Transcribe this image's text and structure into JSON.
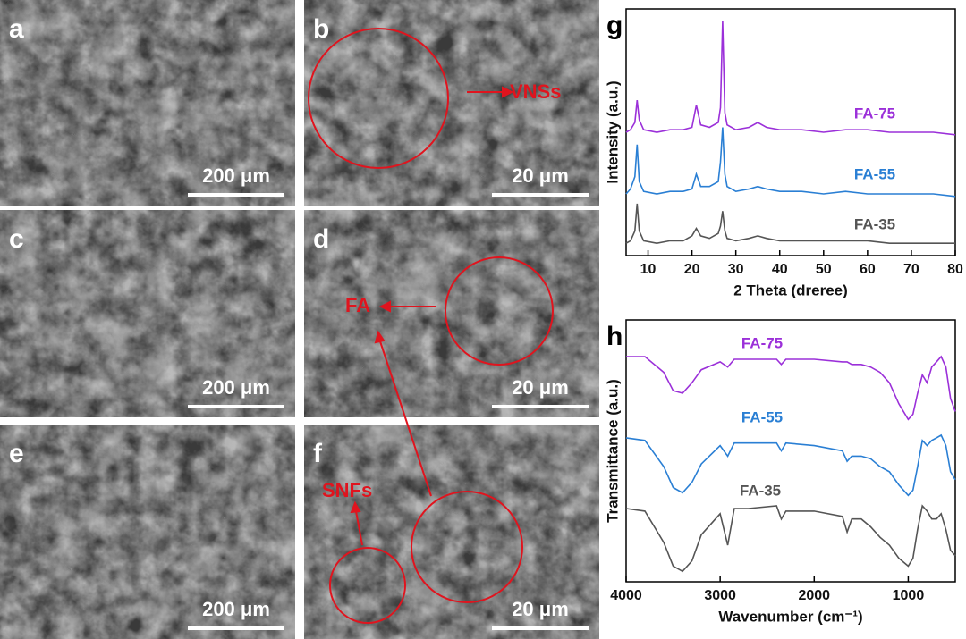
{
  "panels": [
    {
      "label": "a",
      "scale_bar": "200 μm"
    },
    {
      "label": "b",
      "scale_bar": "20 μm"
    },
    {
      "label": "c",
      "scale_bar": "200 μm"
    },
    {
      "label": "d",
      "scale_bar": "20 μm"
    },
    {
      "label": "e",
      "scale_bar": "200 μm"
    },
    {
      "label": "f",
      "scale_bar": "20 μm"
    }
  ],
  "annotations": {
    "vnss": "VNSs",
    "fa": "FA",
    "snfs": "SNFs"
  },
  "chart_data": [
    {
      "type": "line",
      "panel_label": "g",
      "x_label": "2 Theta (dreree)",
      "y_label": "Intensity (a.u.)",
      "x": [
        5,
        6,
        7,
        7.5,
        8,
        9,
        12,
        15,
        18,
        20,
        21,
        22,
        24,
        26,
        26.5,
        27,
        27.5,
        28,
        30,
        33,
        35,
        37,
        40,
        45,
        50,
        55,
        60,
        65,
        70,
        75,
        80
      ],
      "xlim": [
        5,
        80
      ],
      "xticks": [
        10,
        20,
        30,
        40,
        50,
        60,
        70,
        80
      ],
      "ylim": [
        0,
        100
      ],
      "series": [
        {
          "name": "FA-75",
          "color": "#9b30d9",
          "values": [
            50,
            51,
            54,
            63,
            55,
            51,
            50,
            51,
            51,
            52,
            61,
            53,
            52,
            54,
            60,
            95,
            58,
            53,
            51,
            52,
            54,
            52,
            51,
            51,
            50,
            51,
            51,
            50,
            50,
            50,
            49
          ]
        },
        {
          "name": "FA-55",
          "color": "#2a7fd4",
          "values": [
            25,
            27,
            32,
            45,
            30,
            26,
            25,
            26,
            26,
            27,
            33,
            28,
            28,
            30,
            38,
            52,
            33,
            28,
            26,
            27,
            28,
            27,
            26,
            26,
            25,
            26,
            25,
            25,
            25,
            25,
            24
          ]
        },
        {
          "name": "FA-35",
          "color": "#555555",
          "values": [
            5,
            6,
            10,
            21,
            10,
            6,
            5,
            6,
            6,
            8,
            11,
            8,
            7,
            9,
            12,
            18,
            10,
            7,
            6,
            7,
            8,
            7,
            6,
            6,
            6,
            6,
            6,
            5,
            5,
            5,
            5
          ]
        }
      ]
    },
    {
      "type": "line",
      "panel_label": "h",
      "x_label": "Wavenumber (cm⁻¹)",
      "y_label": "Transmittance (a.u.)",
      "x": [
        4000,
        3800,
        3600,
        3500,
        3400,
        3300,
        3200,
        3000,
        2920,
        2850,
        2700,
        2400,
        2350,
        2300,
        2000,
        1700,
        1650,
        1600,
        1500,
        1400,
        1300,
        1200,
        1100,
        1000,
        950,
        900,
        850,
        800,
        750,
        700,
        650,
        600,
        550,
        500
      ],
      "xlim": [
        4000,
        500
      ],
      "xticks": [
        4000,
        3000,
        2000,
        1000
      ],
      "ylim": [
        0,
        100
      ],
      "series": [
        {
          "name": "FA-75",
          "color": "#9b30d9",
          "values": [
            86,
            86,
            80,
            73,
            72,
            76,
            81,
            84,
            82,
            85,
            85,
            85,
            83,
            85,
            85,
            84,
            84,
            83,
            83,
            82,
            80,
            76,
            68,
            62,
            64,
            72,
            79,
            76,
            82,
            84,
            86,
            82,
            70,
            65
          ]
        },
        {
          "name": "FA-55",
          "color": "#2a7fd4",
          "values": [
            55,
            54,
            44,
            36,
            34,
            38,
            45,
            52,
            48,
            53,
            53,
            53,
            50,
            53,
            52,
            50,
            46,
            48,
            48,
            47,
            44,
            42,
            37,
            33,
            35,
            44,
            54,
            52,
            54,
            55,
            56,
            52,
            42,
            39
          ]
        },
        {
          "name": "FA-35",
          "color": "#555555",
          "values": [
            28,
            27,
            15,
            6,
            4,
            8,
            18,
            26,
            14,
            28,
            28,
            29,
            24,
            27,
            27,
            25,
            19,
            24,
            24,
            21,
            17,
            14,
            9,
            6,
            9,
            20,
            29,
            27,
            24,
            24,
            26,
            20,
            12,
            10
          ]
        }
      ]
    }
  ]
}
